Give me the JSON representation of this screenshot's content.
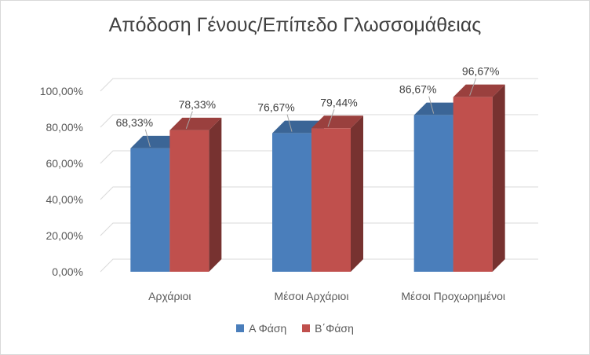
{
  "chart_data": {
    "type": "bar",
    "title": "Απόδοση Γένους/Επίπεδο Γλωσσομάθειας",
    "categories": [
      "Αρχάριοι",
      "Μέσοι Αρχάριοι",
      "Μέσοι Προχωρημένοι"
    ],
    "series": [
      {
        "name": "Α Φάση",
        "values": [
          68.33,
          76.67,
          86.67
        ],
        "labels": [
          "68,33%",
          "76,67%",
          "86,67%"
        ],
        "color": "#4a7ebb"
      },
      {
        "name": "Β΄Φάση",
        "values": [
          78.33,
          79.44,
          96.67
        ],
        "labels": [
          "78,33%",
          "79,44%",
          "96,67%"
        ],
        "color": "#c0504d"
      }
    ],
    "y_ticks": [
      "0,00%",
      "20,00%",
      "40,00%",
      "60,00%",
      "80,00%",
      "100,00%"
    ],
    "ylim": [
      0,
      100
    ],
    "grid": true,
    "legend_position": "bottom",
    "three_d": true
  }
}
